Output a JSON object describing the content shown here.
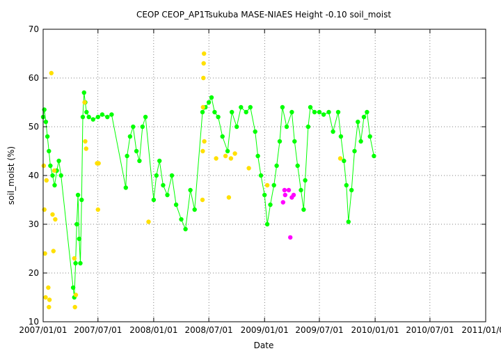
{
  "chart_data": {
    "type": "scatter",
    "title": "CEOP CEOP_AP1Tsukuba MASE-NIAES Height -0.10 soil_moist",
    "xlabel": "Date",
    "ylabel": "soil_moist (%)",
    "xlim": [
      "2007-01-01",
      "2011-01-01"
    ],
    "ylim": [
      10,
      70
    ],
    "x_ticks": [
      "2007/01/01",
      "2007/07/01",
      "2008/01/01",
      "2008/07/01",
      "2009/01/01",
      "2009/07/01",
      "2010/01/01",
      "2010/07/01",
      "2011/01/01"
    ],
    "y_ticks": [
      10,
      20,
      30,
      40,
      50,
      60,
      70
    ],
    "grid": true,
    "series": [
      {
        "color": "#00ff00",
        "values": [
          [
            "2007-01-01",
            52
          ],
          [
            "2007-01-05",
            53.5
          ],
          [
            "2007-01-10",
            51
          ],
          [
            "2007-01-15",
            48
          ],
          [
            "2007-01-20",
            45
          ],
          [
            "2007-01-25",
            42
          ],
          [
            "2007-02-01",
            40
          ],
          [
            "2007-02-08",
            38
          ],
          [
            "2007-02-15",
            41
          ],
          [
            "2007-02-22",
            43
          ],
          [
            "2007-03-01",
            40
          ],
          [
            "2007-04-10",
            17
          ],
          [
            "2007-04-14",
            15
          ],
          [
            "2007-04-18",
            22
          ],
          [
            "2007-04-22",
            30
          ],
          [
            "2007-04-26",
            36
          ],
          [
            "2007-04-30",
            27
          ],
          [
            "2007-05-04",
            22
          ],
          [
            "2007-05-08",
            35
          ],
          [
            "2007-05-12",
            52
          ],
          [
            "2007-05-16",
            57
          ],
          [
            "2007-05-20",
            55
          ],
          [
            "2007-05-24",
            53
          ],
          [
            "2007-06-01",
            52
          ],
          [
            "2007-06-15",
            51.5
          ],
          [
            "2007-07-01",
            52
          ],
          [
            "2007-07-15",
            52.5
          ],
          [
            "2007-08-01",
            52
          ],
          [
            "2007-08-15",
            52.5
          ],
          [
            "2007-10-01",
            37.5
          ],
          [
            "2007-10-05",
            44
          ],
          [
            "2007-10-15",
            48
          ],
          [
            "2007-10-25",
            50
          ],
          [
            "2007-11-05",
            45
          ],
          [
            "2007-11-15",
            43
          ],
          [
            "2007-11-25",
            50
          ],
          [
            "2007-12-05",
            52
          ],
          [
            "2008-01-01",
            35
          ],
          [
            "2008-01-10",
            40
          ],
          [
            "2008-01-20",
            43
          ],
          [
            "2008-02-01",
            38
          ],
          [
            "2008-02-15",
            36
          ],
          [
            "2008-03-01",
            40
          ],
          [
            "2008-03-15",
            34
          ],
          [
            "2008-04-01",
            31
          ],
          [
            "2008-04-15",
            29
          ],
          [
            "2008-05-01",
            37
          ],
          [
            "2008-05-15",
            33
          ],
          [
            "2008-06-10",
            53
          ],
          [
            "2008-06-20",
            54
          ],
          [
            "2008-07-01",
            55
          ],
          [
            "2008-07-10",
            56
          ],
          [
            "2008-07-20",
            53
          ],
          [
            "2008-08-01",
            52
          ],
          [
            "2008-08-15",
            48
          ],
          [
            "2008-09-01",
            45
          ],
          [
            "2008-09-15",
            53
          ],
          [
            "2008-10-01",
            50
          ],
          [
            "2008-10-15",
            54
          ],
          [
            "2008-11-01",
            53
          ],
          [
            "2008-11-15",
            54
          ],
          [
            "2008-12-01",
            49
          ],
          [
            "2008-12-10",
            44
          ],
          [
            "2008-12-20",
            40
          ],
          [
            "2009-01-01",
            36
          ],
          [
            "2009-01-10",
            30
          ],
          [
            "2009-01-20",
            34
          ],
          [
            "2009-02-01",
            38
          ],
          [
            "2009-02-10",
            42
          ],
          [
            "2009-02-20",
            47
          ],
          [
            "2009-03-01",
            54
          ],
          [
            "2009-03-15",
            50
          ],
          [
            "2009-04-01",
            53
          ],
          [
            "2009-04-10",
            47
          ],
          [
            "2009-04-20",
            42
          ],
          [
            "2009-05-01",
            37
          ],
          [
            "2009-05-10",
            33
          ],
          [
            "2009-05-15",
            39
          ],
          [
            "2009-05-25",
            50
          ],
          [
            "2009-06-01",
            54
          ],
          [
            "2009-06-15",
            53
          ],
          [
            "2009-07-01",
            53
          ],
          [
            "2009-07-15",
            52.5
          ],
          [
            "2009-08-01",
            53
          ],
          [
            "2009-08-15",
            49
          ],
          [
            "2009-09-01",
            53
          ],
          [
            "2009-09-10",
            48
          ],
          [
            "2009-09-20",
            43
          ],
          [
            "2009-09-28",
            38
          ],
          [
            "2009-10-05",
            30.5
          ],
          [
            "2009-10-15",
            37
          ],
          [
            "2009-10-25",
            45
          ],
          [
            "2009-11-05",
            51
          ],
          [
            "2009-11-15",
            47
          ],
          [
            "2009-11-25",
            52
          ],
          [
            "2009-12-05",
            53
          ],
          [
            "2009-12-15",
            48
          ],
          [
            "2009-12-28",
            44
          ]
        ]
      },
      {
        "color": "#ffe000",
        "values": [
          [
            "2007-01-03",
            42
          ],
          [
            "2007-01-05",
            33
          ],
          [
            "2007-01-07",
            24
          ],
          [
            "2007-01-09",
            15
          ],
          [
            "2007-01-12",
            39
          ],
          [
            "2007-01-18",
            17
          ],
          [
            "2007-01-20",
            13
          ],
          [
            "2007-01-22",
            14.5
          ],
          [
            "2007-01-28",
            61
          ],
          [
            "2007-02-01",
            32
          ],
          [
            "2007-02-04",
            24.5
          ],
          [
            "2007-02-07",
            41
          ],
          [
            "2007-02-10",
            31
          ],
          [
            "2007-04-14",
            23
          ],
          [
            "2007-04-16",
            13
          ],
          [
            "2007-04-19",
            15.5
          ],
          [
            "2007-05-18",
            55
          ],
          [
            "2007-05-20",
            47
          ],
          [
            "2007-05-23",
            45.5
          ],
          [
            "2007-06-28",
            42.5
          ],
          [
            "2007-07-01",
            33
          ],
          [
            "2007-07-03",
            42.5
          ],
          [
            "2007-12-15",
            30.5
          ],
          [
            "2008-06-10",
            35
          ],
          [
            "2008-06-11",
            45
          ],
          [
            "2008-06-12",
            54
          ],
          [
            "2008-06-13",
            60
          ],
          [
            "2008-06-14",
            63
          ],
          [
            "2008-06-15",
            65
          ],
          [
            "2008-06-16",
            47
          ],
          [
            "2008-07-25",
            43.5
          ],
          [
            "2008-08-25",
            44
          ],
          [
            "2008-09-05",
            35.5
          ],
          [
            "2008-09-12",
            43.5
          ],
          [
            "2008-09-25",
            44.5
          ],
          [
            "2008-11-10",
            41.5
          ],
          [
            "2009-01-10",
            38
          ],
          [
            "2009-09-08",
            43.5
          ]
        ]
      },
      {
        "color": "#ff00ff",
        "values": [
          [
            "2009-03-03",
            34.5
          ],
          [
            "2009-03-08",
            37
          ],
          [
            "2009-03-10",
            36
          ],
          [
            "2009-03-22",
            37
          ],
          [
            "2009-03-27",
            27.3
          ],
          [
            "2009-04-01",
            35.5
          ],
          [
            "2009-04-07",
            36
          ]
        ]
      }
    ]
  }
}
